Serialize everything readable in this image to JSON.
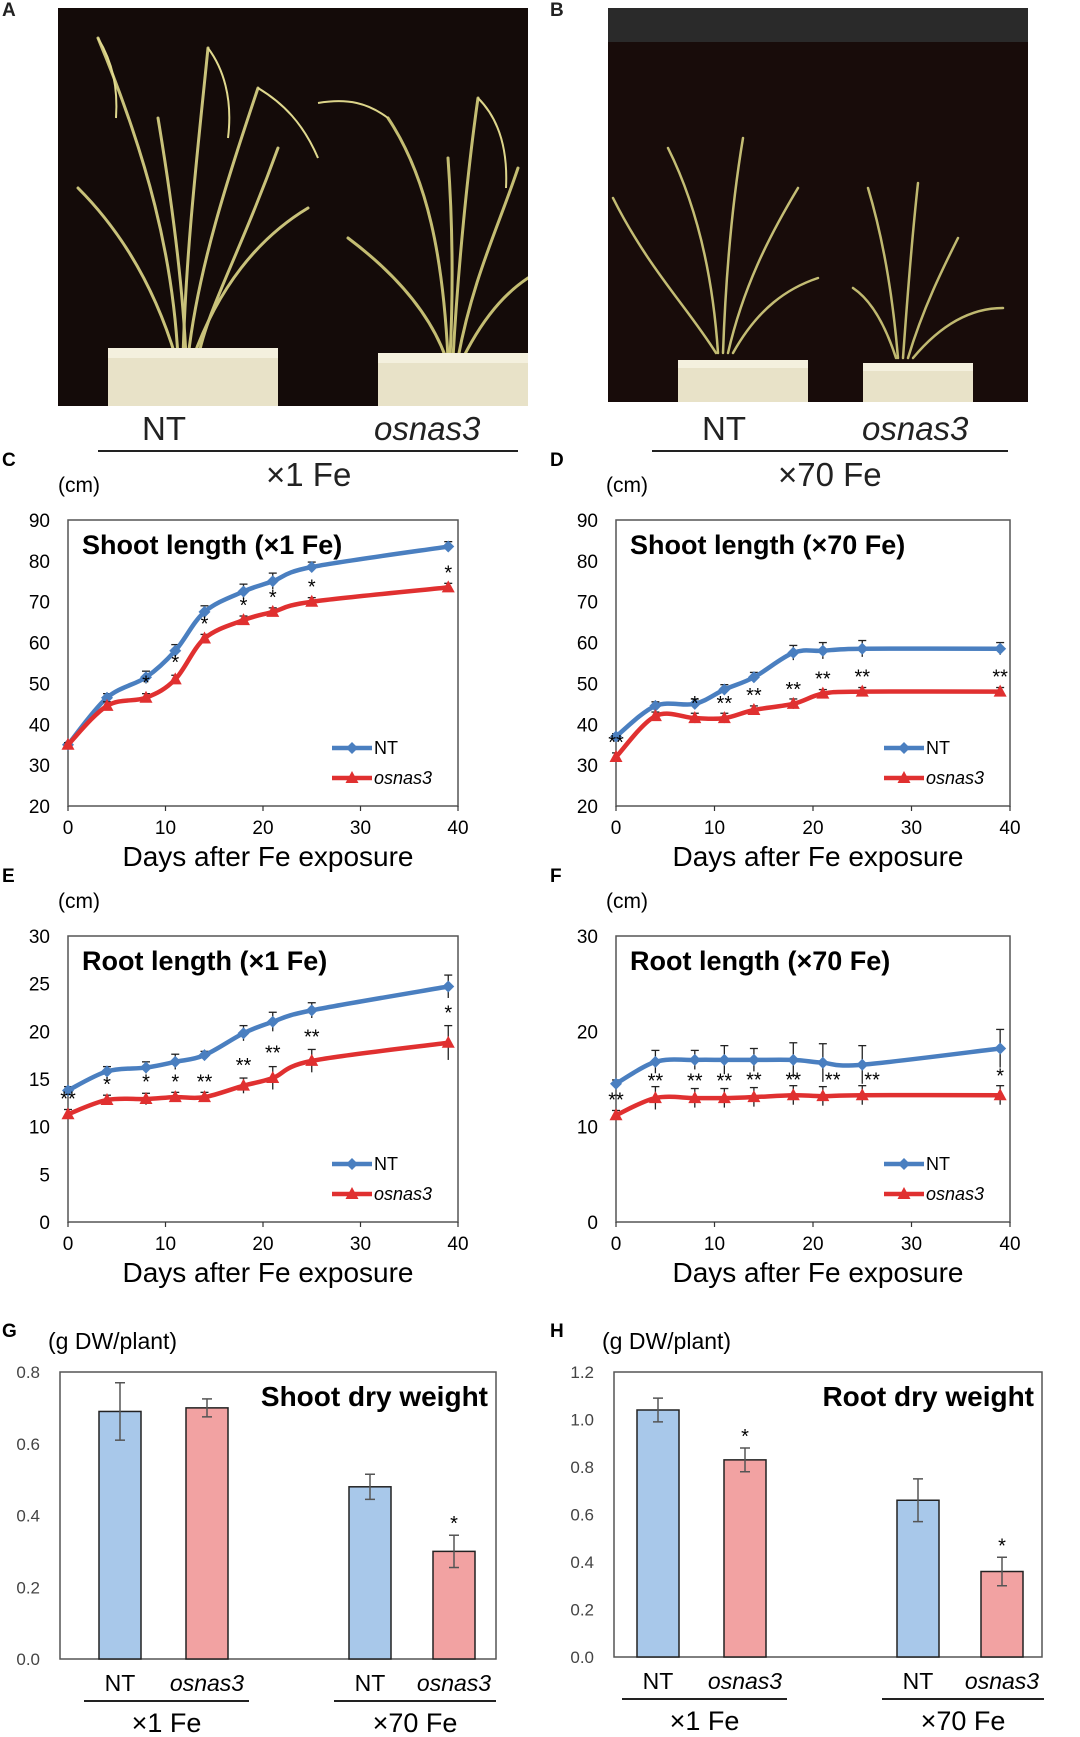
{
  "panels": {
    "A": {
      "letter": "A",
      "label_left": "NT",
      "label_right": "osnas3",
      "treatment": "×1 Fe"
    },
    "B": {
      "letter": "B",
      "label_left": "NT",
      "label_right": "osnas3",
      "treatment": "×70 Fe"
    }
  },
  "colors": {
    "nt": "#4a7fc0",
    "osnas3": "#e03030",
    "nt_bar": "#a8c8ea",
    "osnas3_bar": "#f2a2a2"
  },
  "chart_data": [
    {
      "id": "C",
      "letter": "C",
      "type": "line",
      "title": "Shoot length (×1 Fe)",
      "unit": "(cm)",
      "xlabel": "Days after Fe exposure",
      "xlim": [
        0,
        40
      ],
      "ylim": [
        20,
        90
      ],
      "xticks": [
        "0",
        "10",
        "20",
        "30",
        "40"
      ],
      "yticks": [
        "20",
        "30",
        "40",
        "50",
        "60",
        "70",
        "80",
        "90"
      ],
      "legend": "bottom-right",
      "series": [
        {
          "name": "NT",
          "x": [
            0,
            4,
            8,
            11,
            14,
            18,
            21,
            25,
            39
          ],
          "y": [
            35,
            46.5,
            51.5,
            58,
            67.5,
            72.5,
            75,
            78.5,
            83.5
          ],
          "err": [
            0.5,
            1,
            1.5,
            1.5,
            1.5,
            1.8,
            2,
            1.2,
            1.2
          ]
        },
        {
          "name": "osnas3",
          "x": [
            0,
            4,
            8,
            11,
            14,
            18,
            21,
            25,
            39
          ],
          "y": [
            35,
            44.5,
            46.5,
            51,
            61,
            65.5,
            67.5,
            70,
            73.5
          ],
          "err": [
            0.5,
            1,
            1,
            1,
            1,
            1,
            1,
            1,
            1
          ]
        }
      ],
      "annotations": [
        {
          "x": 8,
          "y": 47.5,
          "text": "*"
        },
        {
          "x": 11,
          "y": 52.5,
          "text": "*"
        },
        {
          "x": 14,
          "y": 62,
          "text": "*"
        },
        {
          "x": 18,
          "y": 66.5,
          "text": "*"
        },
        {
          "x": 21,
          "y": 68.5,
          "text": "*"
        },
        {
          "x": 25,
          "y": 71,
          "text": "*"
        },
        {
          "x": 39,
          "y": 74.5,
          "text": "*"
        }
      ]
    },
    {
      "id": "D",
      "letter": "D",
      "type": "line",
      "title": "Shoot length (×70 Fe)",
      "unit": "(cm)",
      "xlabel": "Days after Fe exposure",
      "xlim": [
        0,
        40
      ],
      "ylim": [
        20,
        90
      ],
      "xticks": [
        "0",
        "10",
        "20",
        "30",
        "40"
      ],
      "yticks": [
        "20",
        "30",
        "40",
        "50",
        "60",
        "70",
        "80",
        "90"
      ],
      "legend": "bottom-right",
      "series": [
        {
          "name": "NT",
          "x": [
            0,
            4,
            8,
            11,
            14,
            18,
            21,
            25,
            39
          ],
          "y": [
            37,
            44.5,
            45,
            48.5,
            51.5,
            57.5,
            58,
            58.5,
            58.5
          ],
          "err": [
            0.7,
            1,
            1.2,
            1.2,
            1.2,
            1.8,
            2,
            2,
            1.5
          ]
        },
        {
          "name": "osnas3",
          "x": [
            0,
            4,
            8,
            11,
            14,
            18,
            21,
            25,
            39
          ],
          "y": [
            32,
            42,
            41.5,
            41.5,
            43.5,
            45,
            47.5,
            48,
            48
          ],
          "err": [
            1,
            1,
            1.2,
            1.2,
            1,
            1.2,
            1,
            1,
            1
          ]
        }
      ],
      "annotations": [
        {
          "x": 0,
          "y": 33,
          "text": "**"
        },
        {
          "x": 8,
          "y": 42.5,
          "text": "*"
        },
        {
          "x": 11,
          "y": 42.5,
          "text": "**"
        },
        {
          "x": 14,
          "y": 44.5,
          "text": "**"
        },
        {
          "x": 18,
          "y": 46,
          "text": "**"
        },
        {
          "x": 21,
          "y": 48.5,
          "text": "**"
        },
        {
          "x": 25,
          "y": 49,
          "text": "**"
        },
        {
          "x": 39,
          "y": 49,
          "text": "**"
        }
      ]
    },
    {
      "id": "E",
      "letter": "E",
      "type": "line",
      "title": "Root length (×1 Fe)",
      "unit": "(cm)",
      "xlabel": "Days after Fe exposure",
      "xlim": [
        0,
        40
      ],
      "ylim": [
        0,
        30
      ],
      "xticks": [
        "0",
        "10",
        "20",
        "30",
        "40"
      ],
      "yticks": [
        "0",
        "5",
        "10",
        "15",
        "20",
        "25",
        "30"
      ],
      "legend": "bottom-right",
      "series": [
        {
          "name": "NT",
          "x": [
            0,
            4,
            8,
            11,
            14,
            18,
            21,
            25,
            39
          ],
          "y": [
            13.8,
            15.8,
            16.2,
            16.8,
            17.5,
            19.8,
            21,
            22.2,
            24.7
          ],
          "err": [
            0.4,
            0.5,
            0.6,
            0.8,
            0.4,
            0.8,
            1,
            0.8,
            1.2
          ]
        },
        {
          "name": "osnas3",
          "x": [
            0,
            4,
            8,
            11,
            14,
            18,
            21,
            25,
            39
          ],
          "y": [
            11.3,
            12.8,
            12.9,
            13.1,
            13.1,
            14.3,
            15.1,
            16.9,
            18.8
          ],
          "err": [
            0.5,
            0.5,
            0.6,
            0.5,
            0.5,
            0.8,
            1.2,
            1.2,
            1.8
          ]
        }
      ],
      "annotations": [
        {
          "x": 0,
          "y": 11.8,
          "text": "**"
        },
        {
          "x": 4,
          "y": 13.3,
          "text": "*"
        },
        {
          "x": 8,
          "y": 13.6,
          "text": "*"
        },
        {
          "x": 11,
          "y": 13.6,
          "text": "*"
        },
        {
          "x": 14,
          "y": 13.6,
          "text": "**"
        },
        {
          "x": 18,
          "y": 15.3,
          "text": "**"
        },
        {
          "x": 21,
          "y": 16.6,
          "text": "**"
        },
        {
          "x": 25,
          "y": 18.3,
          "text": "**"
        },
        {
          "x": 39,
          "y": 20.8,
          "text": "*"
        }
      ]
    },
    {
      "id": "F",
      "letter": "F",
      "type": "line",
      "title": "Root length (×70 Fe)",
      "unit": "(cm)",
      "xlabel": "Days after Fe exposure",
      "xlim": [
        0,
        40
      ],
      "ylim": [
        0,
        30
      ],
      "xticks": [
        "0",
        "10",
        "20",
        "30",
        "40"
      ],
      "yticks": [
        "0",
        "10",
        "20",
        "30"
      ],
      "legend": "bottom-right",
      "series": [
        {
          "name": "NT",
          "x": [
            0,
            4,
            8,
            11,
            14,
            18,
            21,
            25,
            39
          ],
          "y": [
            14.5,
            16.8,
            17,
            17,
            17,
            17,
            16.7,
            16.5,
            18.2
          ],
          "err": [
            0.4,
            1.2,
            1,
            1.5,
            1.2,
            1.8,
            2,
            2,
            2
          ]
        },
        {
          "name": "osnas3",
          "x": [
            0,
            4,
            8,
            11,
            14,
            18,
            21,
            25,
            39
          ],
          "y": [
            11.2,
            13,
            13,
            13,
            13.1,
            13.3,
            13.2,
            13.3,
            13.3
          ],
          "err": [
            0.5,
            1.2,
            1,
            1,
            1,
            1,
            1,
            1,
            1
          ]
        }
      ],
      "annotations": [
        {
          "x": 0,
          "y": 11.7,
          "text": "**"
        },
        {
          "x": 4,
          "y": 13.7,
          "text": "**"
        },
        {
          "x": 8,
          "y": 13.7,
          "text": "**"
        },
        {
          "x": 11,
          "y": 13.7,
          "text": "**"
        },
        {
          "x": 14,
          "y": 13.8,
          "text": "**"
        },
        {
          "x": 18,
          "y": 13.8,
          "text": "**"
        },
        {
          "x": 22,
          "y": 13.8,
          "text": "**"
        },
        {
          "x": 26,
          "y": 13.8,
          "text": "**"
        },
        {
          "x": 39,
          "y": 14.2,
          "text": "*"
        }
      ]
    },
    {
      "id": "G",
      "letter": "G",
      "type": "bar",
      "title": "Shoot dry weight",
      "unit": "(g DW/plant)",
      "ylim": [
        0,
        0.8
      ],
      "yticks": [
        "0.0",
        "0.2",
        "0.4",
        "0.6",
        "0.8"
      ],
      "groups": [
        {
          "label": "×1 Fe",
          "bars": [
            {
              "label": "NT",
              "value": 0.69,
              "err": 0.08
            },
            {
              "label": "osnas3",
              "value": 0.7,
              "err": 0.025
            }
          ]
        },
        {
          "label": "×70 Fe",
          "bars": [
            {
              "label": "NT",
              "value": 0.48,
              "err": 0.035
            },
            {
              "label": "osnas3",
              "value": 0.3,
              "err": 0.045,
              "sig": "*"
            }
          ]
        }
      ]
    },
    {
      "id": "H",
      "letter": "H",
      "type": "bar",
      "title": "Root dry weight",
      "unit": "(g DW/plant)",
      "ylim": [
        0,
        1.2
      ],
      "yticks": [
        "0.0",
        "0.2",
        "0.4",
        "0.6",
        "0.8",
        "1.0",
        "1.2"
      ],
      "groups": [
        {
          "label": "×1 Fe",
          "bars": [
            {
              "label": "NT",
              "value": 1.04,
              "err": 0.05
            },
            {
              "label": "osnas3",
              "value": 0.83,
              "err": 0.05,
              "sig": "*"
            }
          ]
        },
        {
          "label": "×70 Fe",
          "bars": [
            {
              "label": "NT",
              "value": 0.66,
              "err": 0.09
            },
            {
              "label": "osnas3",
              "value": 0.36,
              "err": 0.06,
              "sig": "*"
            }
          ]
        }
      ]
    }
  ]
}
